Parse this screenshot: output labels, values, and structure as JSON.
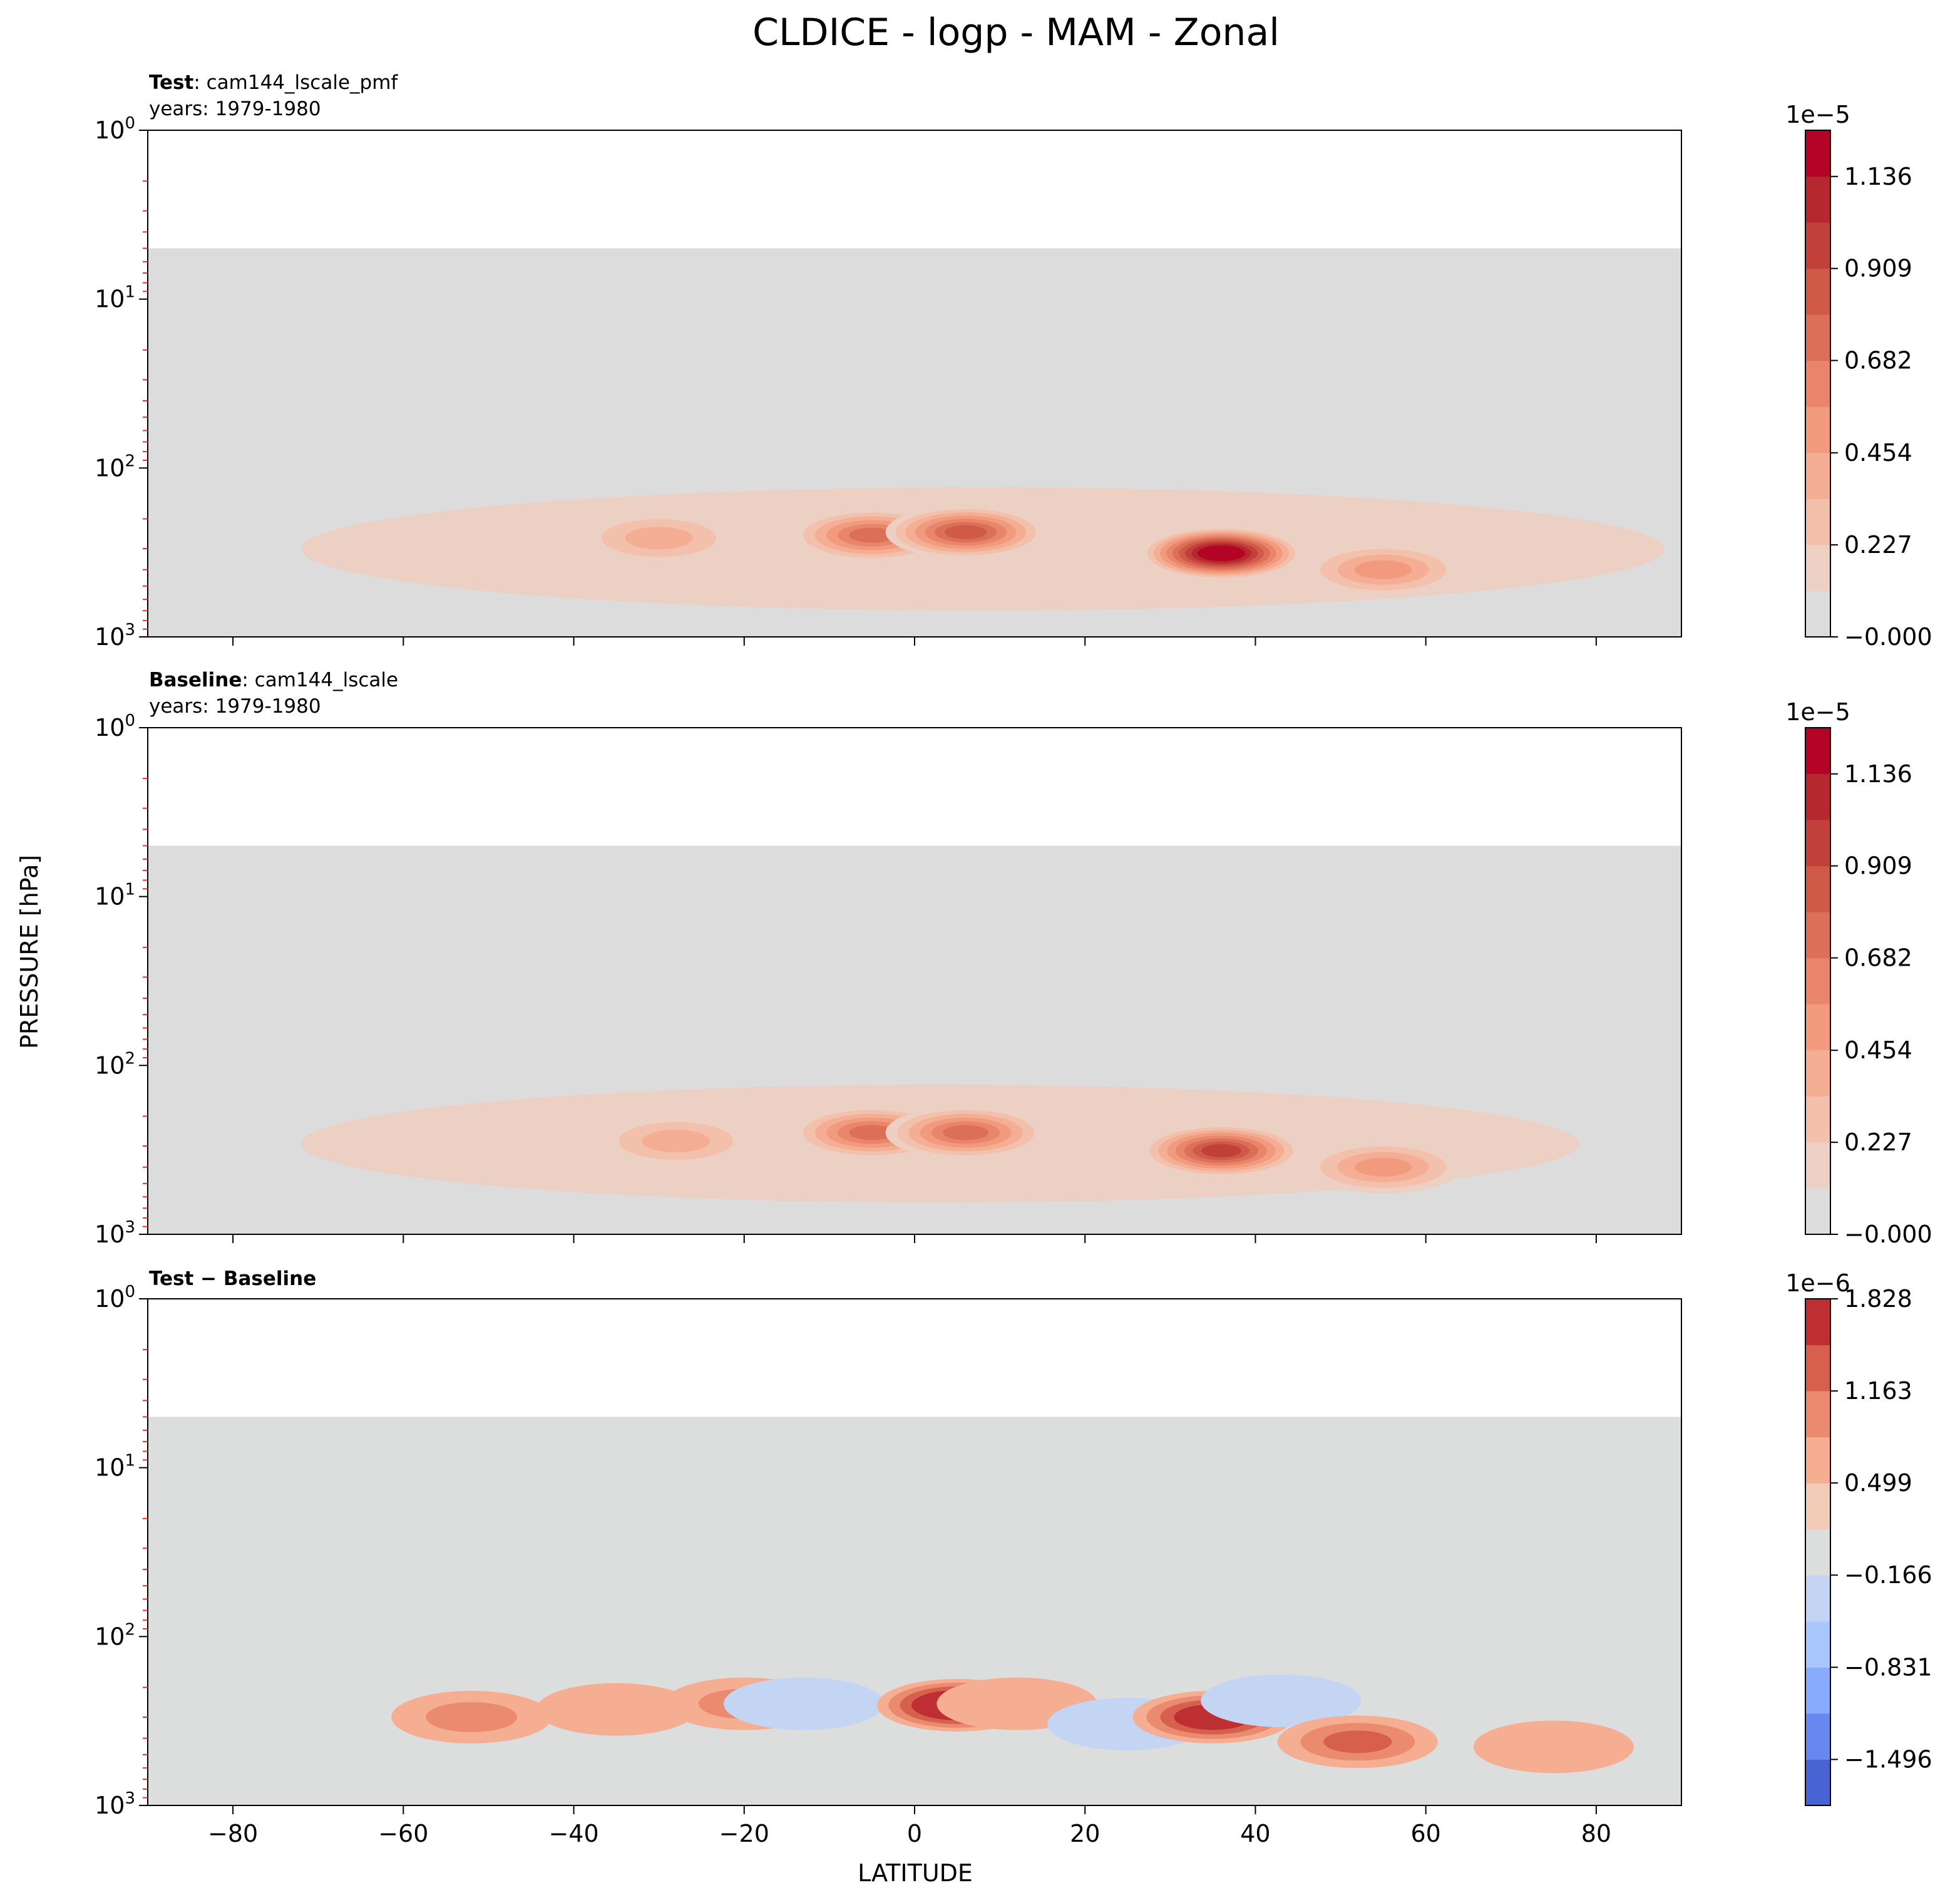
{
  "figure": {
    "title": "CLDICE - logp - MAM - Zonal",
    "xlabel": "LATITUDE",
    "ylabel": "PRESSURE [hPa]"
  },
  "chart_data": [
    {
      "type": "heatmap",
      "panel": "Test",
      "title_bold": "Test",
      "title_rest": ": cam144_lscale_pmf",
      "subtitle": "years: 1979-1980",
      "x_ticks": [
        "−80",
        "−60",
        "−40",
        "−20",
        "0",
        "20",
        "40",
        "60",
        "80"
      ],
      "x_tick_values": [
        -80,
        -60,
        -40,
        -20,
        0,
        20,
        40,
        60,
        80
      ],
      "x_tick_labels_shown": false,
      "xlim": [
        -90,
        90
      ],
      "y_scale": "log",
      "y_inverted": true,
      "ylim": [
        1000,
        1
      ],
      "y_ticks": [
        {
          "base": "10",
          "exp": "0",
          "value": 1
        },
        {
          "base": "10",
          "exp": "1",
          "value": 10
        },
        {
          "base": "10",
          "exp": "2",
          "value": 100
        },
        {
          "base": "10",
          "exp": "3",
          "value": 1000
        }
      ],
      "data_top_hPa": 5,
      "background_value": 0,
      "colorbar": {
        "multiplier": "1e−5",
        "ticks": [
          "1.136",
          "0.909",
          "0.682",
          "0.454",
          "0.227",
          "−0.000"
        ],
        "tick_values": [
          1.136,
          0.909,
          0.682,
          0.454,
          0.227,
          0.0
        ],
        "range": [
          0.0,
          1.25
        ],
        "levels": 11,
        "colors": [
          "#dddcdc",
          "#ecd0c3",
          "#f3c0ab",
          "#f4ae94",
          "#f19a7e",
          "#e8856a",
          "#dc6f57",
          "#ce5a47",
          "#c1403a",
          "#b6282f",
          "#b40426"
        ]
      },
      "features": [
        {
          "type": "band",
          "lat_from": -72,
          "lat_to": 88,
          "p_top": 130,
          "p_bottom": 700,
          "value": 0.15
        },
        {
          "type": "blob",
          "lat": -30,
          "p": 260,
          "value": 0.35
        },
        {
          "type": "blob",
          "lat": -5,
          "p": 250,
          "value": 0.7
        },
        {
          "type": "blob",
          "lat": 6,
          "p": 240,
          "value": 0.8
        },
        {
          "type": "blob",
          "lat": 36,
          "p": 320,
          "value": 1.25
        },
        {
          "type": "blob",
          "lat": 55,
          "p": 400,
          "value": 0.45
        }
      ]
    },
    {
      "type": "heatmap",
      "panel": "Baseline",
      "title_bold": "Baseline",
      "title_rest": ": cam144_lscale",
      "subtitle": "years: 1979-1980",
      "x_ticks": [
        "−80",
        "−60",
        "−40",
        "−20",
        "0",
        "20",
        "40",
        "60",
        "80"
      ],
      "x_tick_values": [
        -80,
        -60,
        -40,
        -20,
        0,
        20,
        40,
        60,
        80
      ],
      "x_tick_labels_shown": false,
      "xlim": [
        -90,
        90
      ],
      "y_scale": "log",
      "y_inverted": true,
      "ylim": [
        1000,
        1
      ],
      "y_ticks": [
        {
          "base": "10",
          "exp": "0",
          "value": 1
        },
        {
          "base": "10",
          "exp": "1",
          "value": 10
        },
        {
          "base": "10",
          "exp": "2",
          "value": 100
        },
        {
          "base": "10",
          "exp": "3",
          "value": 1000
        }
      ],
      "data_top_hPa": 5,
      "background_value": 0,
      "colorbar": {
        "multiplier": "1e−5",
        "ticks": [
          "1.136",
          "0.909",
          "0.682",
          "0.454",
          "0.227",
          "−0.000"
        ],
        "tick_values": [
          1.136,
          0.909,
          0.682,
          0.454,
          0.227,
          0.0
        ],
        "range": [
          0.0,
          1.25
        ],
        "levels": 11,
        "colors": [
          "#dddcdc",
          "#ecd0c3",
          "#f3c0ab",
          "#f4ae94",
          "#f19a7e",
          "#e8856a",
          "#dc6f57",
          "#ce5a47",
          "#c1403a",
          "#b6282f",
          "#b40426"
        ]
      },
      "features": [
        {
          "type": "band",
          "lat_from": -72,
          "lat_to": 78,
          "p_top": 130,
          "p_bottom": 650,
          "value": 0.15
        },
        {
          "type": "blob",
          "lat": -28,
          "p": 280,
          "value": 0.3
        },
        {
          "type": "blob",
          "lat": -5,
          "p": 250,
          "value": 0.65
        },
        {
          "type": "blob",
          "lat": 6,
          "p": 250,
          "value": 0.7
        },
        {
          "type": "blob",
          "lat": 36,
          "p": 320,
          "value": 0.95
        },
        {
          "type": "blob",
          "lat": 55,
          "p": 400,
          "value": 0.4
        }
      ]
    },
    {
      "type": "heatmap",
      "panel": "Test − Baseline",
      "title_bold": "Test − Baseline",
      "title_rest": "",
      "subtitle": "",
      "x_ticks": [
        "−80",
        "−60",
        "−40",
        "−20",
        "0",
        "20",
        "40",
        "60",
        "80"
      ],
      "x_tick_values": [
        -80,
        -60,
        -40,
        -20,
        0,
        20,
        40,
        60,
        80
      ],
      "x_tick_labels_shown": true,
      "xlim": [
        -90,
        90
      ],
      "y_scale": "log",
      "y_inverted": true,
      "ylim": [
        1000,
        1
      ],
      "y_ticks": [
        {
          "base": "10",
          "exp": "0",
          "value": 1
        },
        {
          "base": "10",
          "exp": "1",
          "value": 10
        },
        {
          "base": "10",
          "exp": "2",
          "value": 100
        },
        {
          "base": "10",
          "exp": "3",
          "value": 1000
        }
      ],
      "data_top_hPa": 5,
      "background_value": 0,
      "colorbar": {
        "multiplier": "1e−6",
        "ticks": [
          "1.828",
          "1.163",
          "0.499",
          "−0.166",
          "−0.831",
          "−1.496"
        ],
        "tick_values": [
          1.828,
          1.163,
          0.499,
          -0.166,
          -0.831,
          -1.496
        ],
        "range": [
          -1.828,
          1.828
        ],
        "levels": 11,
        "colors": [
          "#4a63d3",
          "#6788ee",
          "#88abfd",
          "#a9c6fd",
          "#c4d5f3",
          "#dcdddd",
          "#f2cbb7",
          "#f5ae92",
          "#ea8b6f",
          "#d6604d",
          "#be2f34"
        ]
      },
      "features": [
        {
          "type": "blob",
          "lat": -52,
          "p": 300,
          "value": 0.5
        },
        {
          "type": "blob",
          "lat": -35,
          "p": 270,
          "value": 0.45
        },
        {
          "type": "blob",
          "lat": -20,
          "p": 250,
          "value": 0.7
        },
        {
          "type": "blob",
          "lat": -13,
          "p": 250,
          "value": -0.35
        },
        {
          "type": "blob",
          "lat": 5,
          "p": 255,
          "value": 1.9
        },
        {
          "type": "blob",
          "lat": 12,
          "p": 250,
          "value": 0.4
        },
        {
          "type": "blob",
          "lat": 25,
          "p": 330,
          "value": -0.45
        },
        {
          "type": "blob",
          "lat": 35,
          "p": 300,
          "value": 1.8
        },
        {
          "type": "blob",
          "lat": 43,
          "p": 240,
          "value": -0.45
        },
        {
          "type": "blob",
          "lat": 52,
          "p": 420,
          "value": 0.9
        },
        {
          "type": "blob",
          "lat": 75,
          "p": 450,
          "value": 0.45
        }
      ]
    }
  ]
}
